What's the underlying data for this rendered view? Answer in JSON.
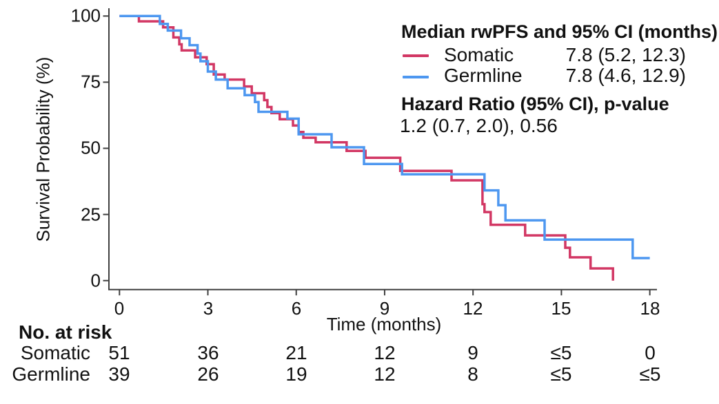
{
  "figure": {
    "y_axis": {
      "label": "Survival Probability (%)",
      "ticks": [
        "100",
        "75",
        "50",
        "25",
        "0"
      ]
    },
    "x_axis": {
      "label": "Time (months)",
      "ticks": [
        "0",
        "3",
        "6",
        "9",
        "12",
        "15",
        "18"
      ]
    },
    "legend": {
      "title": "Median rwPFS and 95% CI (months)",
      "entries": [
        {
          "name": "Somatic",
          "median_ci": "7.8 (5.2, 12.3)"
        },
        {
          "name": "Germline",
          "median_ci": "7.8 (4.6, 12.9)"
        }
      ],
      "hr_title": "Hazard Ratio (95% CI), p-value",
      "hr_value": "1.2 (0.7, 2.0), 0.56"
    },
    "risk_table": {
      "title": "No. at risk",
      "rows": [
        {
          "label": "Somatic",
          "values": [
            "51",
            "36",
            "21",
            "12",
            "9",
            "≤5",
            "0"
          ]
        },
        {
          "label": "Germline",
          "values": [
            "39",
            "26",
            "19",
            "12",
            "8",
            "≤5",
            "≤5"
          ]
        }
      ]
    }
  },
  "chart_data": {
    "type": "line",
    "subtype": "kaplan-meier-step",
    "title": "Median rwPFS and 95% CI (months)",
    "xlabel": "Time (months)",
    "ylabel": "Survival Probability (%)",
    "xlim": [
      0,
      18
    ],
    "ylim": [
      0,
      100
    ],
    "x_ticks": [
      0,
      3,
      6,
      9,
      12,
      15,
      18
    ],
    "y_ticks": [
      0,
      25,
      50,
      75,
      100
    ],
    "grid": false,
    "legend_position": "top-right",
    "hazard_ratio": "1.2 (0.7, 2.0), 0.56",
    "series": [
      {
        "name": "Somatic",
        "color": "#d23764",
        "median_ci": "7.8 (5.2, 12.3)",
        "n_at_risk": {
          "0": "51",
          "3": "36",
          "6": "21",
          "9": "12",
          "12": "9",
          "15": "≤5",
          "18": "0"
        },
        "steps": [
          [
            0,
            100
          ],
          [
            0.66,
            98.0
          ],
          [
            1.48,
            95.7
          ],
          [
            1.83,
            91.9
          ],
          [
            2.03,
            89.3
          ],
          [
            2.11,
            87.0
          ],
          [
            2.57,
            84.4
          ],
          [
            2.96,
            81.8
          ],
          [
            3.2,
            77.9
          ],
          [
            3.57,
            76.0
          ],
          [
            4.23,
            73.4
          ],
          [
            4.49,
            70.8
          ],
          [
            4.91,
            68.2
          ],
          [
            5.02,
            65.6
          ],
          [
            5.16,
            63.3
          ],
          [
            5.44,
            61.0
          ],
          [
            5.89,
            58.6
          ],
          [
            6.08,
            56.2
          ],
          [
            6.24,
            54.0
          ],
          [
            6.66,
            52.3
          ],
          [
            7.71,
            49.0
          ],
          [
            8.35,
            46.4
          ],
          [
            9.53,
            41.5
          ],
          [
            11.27,
            37.9
          ],
          [
            12.32,
            28.9
          ],
          [
            12.39,
            25.9
          ],
          [
            12.6,
            21.1
          ],
          [
            13.77,
            17.1
          ],
          [
            15.13,
            12.4
          ],
          [
            15.29,
            8.8
          ],
          [
            15.99,
            4.6
          ],
          [
            16.75,
            0
          ]
        ]
      },
      {
        "name": "Germline",
        "color": "#4d97f0",
        "median_ci": "7.8 (4.6, 12.9)",
        "n_at_risk": {
          "0": "39",
          "3": "26",
          "6": "19",
          "9": "12",
          "12": "8",
          "15": "≤5",
          "18": "≤5"
        },
        "steps": [
          [
            0,
            100
          ],
          [
            1.37,
            97.0
          ],
          [
            1.64,
            94.5
          ],
          [
            2.09,
            91.6
          ],
          [
            2.38,
            89.0
          ],
          [
            2.65,
            85.8
          ],
          [
            2.75,
            82.9
          ],
          [
            3.0,
            79.0
          ],
          [
            3.27,
            76.0
          ],
          [
            3.67,
            72.7
          ],
          [
            4.25,
            70.1
          ],
          [
            4.6,
            67.5
          ],
          [
            4.72,
            63.8
          ],
          [
            5.7,
            61.2
          ],
          [
            6.08,
            55.3
          ],
          [
            7.2,
            50.4
          ],
          [
            8.3,
            44.1
          ],
          [
            9.59,
            40.2
          ],
          [
            12.39,
            34.1
          ],
          [
            12.86,
            28.5
          ],
          [
            13.1,
            22.8
          ],
          [
            14.43,
            15.5
          ],
          [
            17.42,
            8.5
          ],
          [
            18.0,
            8.5
          ]
        ]
      }
    ]
  }
}
